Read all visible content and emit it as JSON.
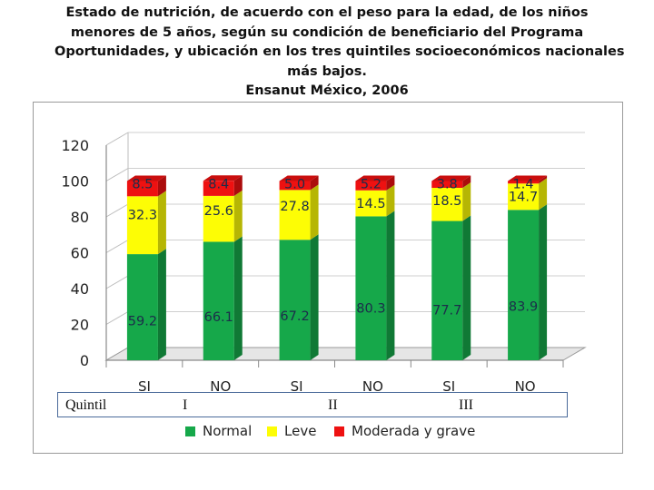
{
  "title_lines": [
    "Estado de nutrición, de acuerdo con el peso para la edad, de los niños",
    "menores de 5 años, según su condición de beneficiario del Programa",
    "Oportunidades, y ubicación en los tres quintiles socioeconómicos nacionales",
    "más bajos.",
    "Ensanut México, 2006"
  ],
  "quintile": {
    "label": "Quintil",
    "groups": [
      "I",
      "II",
      "III"
    ]
  },
  "colors": {
    "normal": "#16a84a",
    "leve": "#fdfd05",
    "moderada": "#ee1111"
  },
  "chart_data": {
    "type": "bar",
    "stacked": true,
    "categories": [
      "SI",
      "NO",
      "SI",
      "NO",
      "SI",
      "NO"
    ],
    "series": [
      {
        "name": "Normal",
        "values": [
          59.2,
          66.1,
          67.2,
          80.3,
          77.7,
          83.9
        ]
      },
      {
        "name": "Leve",
        "values": [
          32.3,
          25.6,
          27.8,
          14.5,
          18.5,
          14.7
        ]
      },
      {
        "name": "Moderada y grave",
        "values": [
          8.5,
          8.4,
          5.0,
          5.2,
          3.8,
          1.4
        ]
      }
    ],
    "value_labels": [
      [
        "59.2",
        "66.1",
        "67.2",
        "80.3",
        "77.7",
        "83.9"
      ],
      [
        "32.3",
        "25.6",
        "27.8",
        "14.5",
        "18.5",
        "14.7"
      ],
      [
        "8.5",
        "8.4",
        "5.0",
        "5.2",
        "3.8",
        "1.4"
      ]
    ],
    "yticks": [
      0,
      20,
      40,
      60,
      80,
      100,
      120
    ],
    "ylim": [
      0,
      120
    ],
    "legend_position": "bottom",
    "grid": true
  }
}
